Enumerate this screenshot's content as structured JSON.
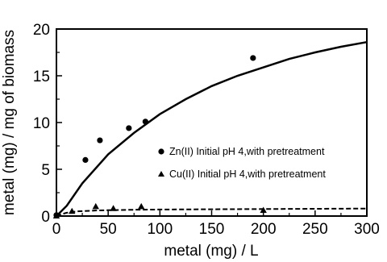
{
  "chart_data": {
    "type": "scatter",
    "xlabel": "metal (mg) /  L",
    "ylabel": "metal (mg) / mg of biomass",
    "xlim": [
      0,
      300
    ],
    "ylim": [
      0,
      20
    ],
    "xticks": [
      0,
      50,
      100,
      150,
      200,
      250,
      300
    ],
    "yticks": [
      0,
      5,
      10,
      15,
      20
    ],
    "grid": false,
    "legend_position": "right",
    "series": [
      {
        "name": "Zn(II)  Initial pH 4,with pretreatment",
        "marker": "circle",
        "points": [
          [
            0,
            0.1
          ],
          [
            28,
            6.0
          ],
          [
            42,
            8.1
          ],
          [
            70,
            9.4
          ],
          [
            86,
            10.1
          ],
          [
            190,
            16.9
          ]
        ],
        "fit": {
          "style": "solid",
          "x": [
            0,
            10,
            25,
            50,
            75,
            100,
            125,
            150,
            175,
            200,
            225,
            250,
            275,
            300
          ],
          "y": [
            0,
            1.1,
            3.5,
            6.6,
            8.9,
            10.9,
            12.5,
            13.9,
            15.0,
            15.9,
            16.8,
            17.5,
            18.1,
            18.6
          ]
        }
      },
      {
        "name": "Cu(II) Initial pH 4,with pretreatment",
        "marker": "triangle",
        "points": [
          [
            0,
            0.0
          ],
          [
            15,
            0.5
          ],
          [
            38,
            1.0
          ],
          [
            55,
            0.8
          ],
          [
            82,
            1.0
          ],
          [
            200,
            0.6
          ]
        ],
        "fit": {
          "style": "dashed",
          "x": [
            0,
            5,
            10,
            20,
            40,
            60,
            80,
            100,
            150,
            200,
            250,
            300
          ],
          "y": [
            0,
            0.2,
            0.35,
            0.5,
            0.6,
            0.65,
            0.68,
            0.7,
            0.72,
            0.75,
            0.78,
            0.8
          ]
        }
      }
    ]
  }
}
